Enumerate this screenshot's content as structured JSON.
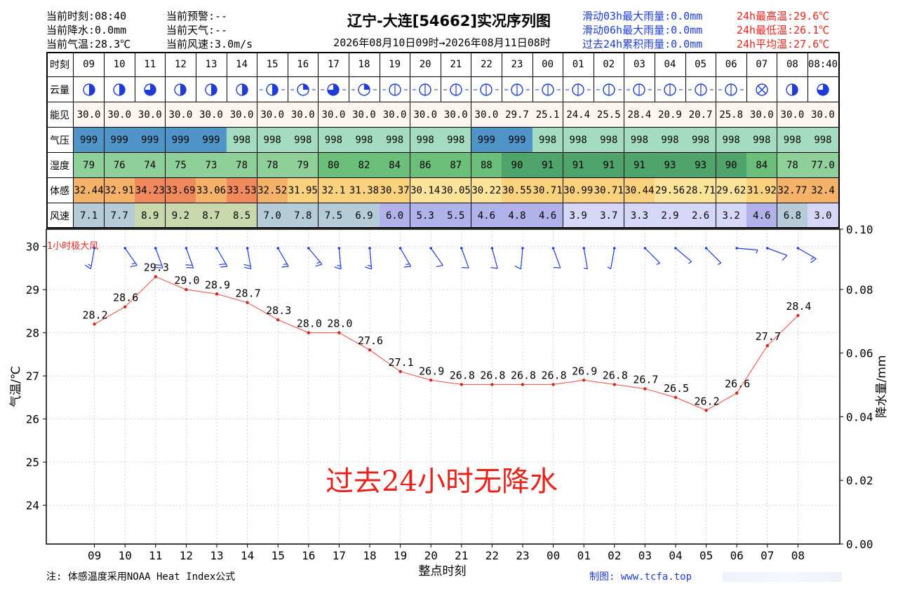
{
  "header": {
    "left": [
      "当前时刻:08:40",
      "当前降水:0.0mm",
      "当前气温:28.3℃"
    ],
    "mid": [
      "当前预警:--",
      "当前天气:--",
      "当前风速:3.0m/s"
    ],
    "rain": [
      "滑动03h最大雨量:0.0mm",
      "滑动06h最大雨量:0.0mm",
      "过去24h累积雨量:0.0mm"
    ],
    "temp": [
      "24h最高温:29.6℃",
      "24h最低温:26.1℃",
      "24h平均温:27.6℃"
    ],
    "title": "辽宁-大连[54662]实况序列图",
    "subtitle": "2026年08月10日09时→2026年08月11日08时"
  },
  "table": {
    "labels": {
      "time": "时刻",
      "cloud": "云量",
      "vis": "能见",
      "pres": "气压",
      "hum": "湿度",
      "feel": "体感",
      "wind": "风速"
    },
    "times": [
      "09",
      "10",
      "11",
      "12",
      "13",
      "14",
      "15",
      "16",
      "17",
      "18",
      "19",
      "20",
      "21",
      "22",
      "23",
      "00",
      "01",
      "02",
      "03",
      "04",
      "05",
      "06",
      "07",
      "08",
      "08:40"
    ],
    "vis": [
      "30.0",
      "30.0",
      "30.0",
      "30.0",
      "30.0",
      "30.0",
      "30.0",
      "30.0",
      "30.0",
      "30.0",
      "30.0",
      "30.0",
      "30.0",
      "30.0",
      "29.7",
      "25.1",
      "24.4",
      "25.5",
      "28.4",
      "20.9",
      "20.7",
      "25.8",
      "30.0",
      "30.0",
      "30.0"
    ],
    "pres": [
      "999",
      "999",
      "999",
      "999",
      "999",
      "998",
      "998",
      "998",
      "998",
      "998",
      "998",
      "998",
      "998",
      "999",
      "999",
      "998",
      "998",
      "998",
      "998",
      "998",
      "998",
      "998",
      "998",
      "998",
      "998"
    ],
    "hum": [
      "79",
      "76",
      "74",
      "75",
      "73",
      "78",
      "78",
      "79",
      "80",
      "82",
      "84",
      "86",
      "87",
      "88",
      "90",
      "91",
      "91",
      "91",
      "91",
      "93",
      "93",
      "90",
      "84",
      "78",
      "77.0"
    ],
    "feel": [
      "32.44",
      "32.91",
      "34.23",
      "33.69",
      "33.06",
      "33.53",
      "32.52",
      "31.95",
      "32.1",
      "31.38",
      "30.37",
      "30.14",
      "30.05",
      "30.22",
      "30.55",
      "30.71",
      "30.99",
      "30.71",
      "30.44",
      "29.56",
      "28.71",
      "29.62",
      "31.92",
      "32.77",
      "32.4"
    ],
    "wind": [
      "7.1",
      "7.7",
      "8.9",
      "9.2",
      "8.7",
      "8.5",
      "7.0",
      "7.8",
      "7.5",
      "6.9",
      "6.0",
      "5.3",
      "5.5",
      "4.6",
      "4.8",
      "4.6",
      "3.9",
      "3.7",
      "3.3",
      "2.9",
      "2.6",
      "3.2",
      "4.6",
      "6.8",
      "3.0"
    ],
    "cloud_fraction": [
      0.5,
      0.5,
      0.75,
      0.5,
      0.5,
      0.5,
      0.5,
      0.25,
      0.75,
      0.25,
      0,
      0,
      0,
      0,
      0,
      0,
      0,
      0,
      0,
      0,
      0,
      0,
      1,
      0.5,
      0.75
    ],
    "colors": {
      "pres": {
        "999": "#4f95c8",
        "998": "#a3dcc0"
      },
      "hum_light": "#8fd09a",
      "hum_mid": "#6bbf7a",
      "hum_dark": "#4ea46a",
      "feel_hot": "#f08a5d",
      "feel_warm": "#f5b36a",
      "feel_mild": "#fad27e",
      "feel_cool": "#fbe49a",
      "wind_fast": "#c8d8ac",
      "wind_mid": "#b6cbd8",
      "wind_slow": "#b2b2ea",
      "wind_low": "#d6d6f6"
    }
  },
  "chart_data": {
    "type": "line",
    "x": [
      "09",
      "10",
      "11",
      "12",
      "13",
      "14",
      "15",
      "16",
      "17",
      "18",
      "19",
      "20",
      "21",
      "22",
      "23",
      "00",
      "01",
      "02",
      "03",
      "04",
      "05",
      "06",
      "07",
      "08"
    ],
    "values": [
      28.2,
      28.6,
      29.3,
      29.0,
      28.9,
      28.7,
      28.3,
      28.0,
      28.0,
      27.6,
      27.1,
      26.9,
      26.8,
      26.8,
      26.8,
      26.8,
      26.9,
      26.8,
      26.7,
      26.5,
      26.2,
      26.6,
      27.7,
      28.4
    ],
    "ylabel": "气温/℃",
    "y2label": "降水量/mm",
    "xlabel": "整点时刻",
    "ylim": [
      23.1,
      30.4
    ],
    "yticks": [
      24,
      25,
      26,
      27,
      28,
      29,
      30
    ],
    "y2ticks": [
      "0.00",
      "0.02",
      "0.04",
      "0.06",
      "0.08",
      "0.10"
    ],
    "grid": true,
    "line_color": "#f0473a",
    "wind_label": "1小时极大风",
    "wind_barbs": [
      {
        "dir": 10,
        "speed": 7.1
      },
      {
        "dir": 325,
        "speed": 7.7
      },
      {
        "dir": 340,
        "speed": 8.9
      },
      {
        "dir": 340,
        "speed": 9.2
      },
      {
        "dir": 330,
        "speed": 8.7
      },
      {
        "dir": 350,
        "speed": 8.5
      },
      {
        "dir": 330,
        "speed": 7.0
      },
      {
        "dir": 320,
        "speed": 7.8
      },
      {
        "dir": 355,
        "speed": 7.5
      },
      {
        "dir": 355,
        "speed": 6.9
      },
      {
        "dir": 330,
        "speed": 6.0
      },
      {
        "dir": 325,
        "speed": 5.3
      },
      {
        "dir": 340,
        "speed": 5.5
      },
      {
        "dir": 345,
        "speed": 4.6
      },
      {
        "dir": 5,
        "speed": 4.8
      },
      {
        "dir": 340,
        "speed": 4.6
      },
      {
        "dir": 350,
        "speed": 3.9
      },
      {
        "dir": 10,
        "speed": 3.7
      },
      {
        "dir": 315,
        "speed": 3.3
      },
      {
        "dir": 310,
        "speed": 2.9
      },
      {
        "dir": 315,
        "speed": 2.6
      },
      {
        "dir": 275,
        "speed": 3.2
      },
      {
        "dir": 290,
        "speed": 4.6
      },
      {
        "dir": 300,
        "speed": 6.8
      }
    ],
    "annotation": "过去24小时无降水",
    "annotation_color": "#e8231c"
  },
  "footer": {
    "note": "注: 体感温度采用NOAA Heat Index公式",
    "credit": "制图: www.tcfa.top"
  }
}
